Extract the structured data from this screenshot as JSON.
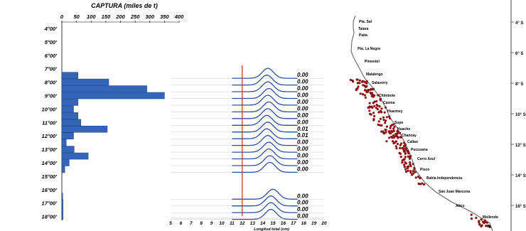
{
  "colors": {
    "bar": "#3366b8",
    "bar_edge": "#1f3f7a",
    "curve": "#2d4fa0",
    "redline": "#d62728",
    "dot": "#8b1010",
    "coast": "#666666",
    "text": "#000000"
  },
  "chart_data": [
    {
      "type": "bar",
      "orientation": "horizontal",
      "title": "CAPTURA (miles de t)",
      "xlim": [
        0,
        400
      ],
      "xticks": [
        "0",
        "50",
        "100",
        "150",
        "200",
        "250",
        "300",
        "350",
        "400"
      ],
      "lat_ticks": [
        "4°00'",
        "5°00'",
        "6°00'",
        "7°00'",
        "8°00'",
        "9°00'",
        "10°00'",
        "11°00'",
        "12°00'",
        "13°00'",
        "14°00'",
        "15°00'",
        "16°00'",
        "17°00'",
        "18°00'"
      ],
      "bars": [
        {
          "lat": 7.5,
          "value": 55
        },
        {
          "lat": 8.0,
          "value": 160
        },
        {
          "lat": 8.5,
          "value": 290
        },
        {
          "lat": 9.0,
          "value": 350
        },
        {
          "lat": 9.5,
          "value": 55
        },
        {
          "lat": 10.0,
          "value": 40
        },
        {
          "lat": 10.5,
          "value": 55
        },
        {
          "lat": 11.0,
          "value": 65
        },
        {
          "lat": 11.5,
          "value": 155
        },
        {
          "lat": 12.0,
          "value": 40
        },
        {
          "lat": 12.5,
          "value": 15
        },
        {
          "lat": 13.0,
          "value": 42
        },
        {
          "lat": 13.5,
          "value": 90
        },
        {
          "lat": 14.0,
          "value": 25
        },
        {
          "lat": 14.5,
          "value": 10
        },
        {
          "lat": 16.5,
          "value": 3
        },
        {
          "lat": 17.0,
          "value": 4
        },
        {
          "lat": 17.5,
          "value": 4
        },
        {
          "lat": 18.0,
          "value": 4
        }
      ]
    },
    {
      "type": "line",
      "subtype": "length-frequency ridgeline",
      "xlabel": "Longitud total (cm)",
      "xlim": [
        5,
        20
      ],
      "xticks": [
        "5",
        "6",
        "7",
        "8",
        "9",
        "10",
        "11",
        "12",
        "13",
        "14",
        "15",
        "16",
        "17",
        "18",
        "19",
        "20"
      ],
      "threshold_cm": 12,
      "series": [
        {
          "lat": 7.5,
          "mode_cm": 14.5,
          "label": "0.00"
        },
        {
          "lat": 8.0,
          "mode_cm": 14.4,
          "label": "0.00"
        },
        {
          "lat": 8.5,
          "mode_cm": 14.5,
          "label": "0.00"
        },
        {
          "lat": 9.0,
          "mode_cm": 14.6,
          "label": "0.00"
        },
        {
          "lat": 9.5,
          "mode_cm": 14.5,
          "label": "0.00"
        },
        {
          "lat": 10.0,
          "mode_cm": 14.6,
          "label": "0.00"
        },
        {
          "lat": 10.5,
          "mode_cm": 14.5,
          "label": "0.00"
        },
        {
          "lat": 11.0,
          "mode_cm": 14.4,
          "label": "0.00"
        },
        {
          "lat": 11.5,
          "mode_cm": 14.5,
          "label": "0.01"
        },
        {
          "lat": 12.0,
          "mode_cm": 14.4,
          "label": "0.01"
        },
        {
          "lat": 12.5,
          "mode_cm": 14.5,
          "label": "0.00"
        },
        {
          "lat": 13.0,
          "mode_cm": 14.6,
          "label": "0.00"
        },
        {
          "lat": 13.5,
          "mode_cm": 14.6,
          "label": "0.00"
        },
        {
          "lat": 14.0,
          "mode_cm": 14.7,
          "label": "0.00"
        },
        {
          "lat": 14.5,
          "mode_cm": 14.7,
          "label": "0.00"
        },
        {
          "lat": 16.5,
          "mode_cm": 15.0,
          "label": "0.00"
        },
        {
          "lat": 17.0,
          "mode_cm": 14.8,
          "label": "0.00"
        },
        {
          "lat": 17.5,
          "mode_cm": 14.8,
          "label": "0.00"
        },
        {
          "lat": 18.0,
          "mode_cm": 14.8,
          "label": "0.00"
        }
      ]
    }
  ],
  "map": {
    "lat_ticks": [
      "4° S",
      "6° S",
      "8° S",
      "10° S",
      "12° S",
      "14° S",
      "16° S"
    ],
    "places": [
      "Pta. Sal",
      "Talara",
      "Paita",
      "Pta. La Negra",
      "Pimentel",
      "Malabrigo",
      "Salaverry",
      "Chimbote",
      "Casma",
      "Huarmey",
      "Supe",
      "Huacho",
      "Chancay",
      "Callao",
      "Pucusana",
      "Cerro Azul",
      "Pisco",
      "Bahía Independencia",
      "San Juan Marcona",
      "Atico",
      "Mollendo",
      "Ilo"
    ]
  }
}
